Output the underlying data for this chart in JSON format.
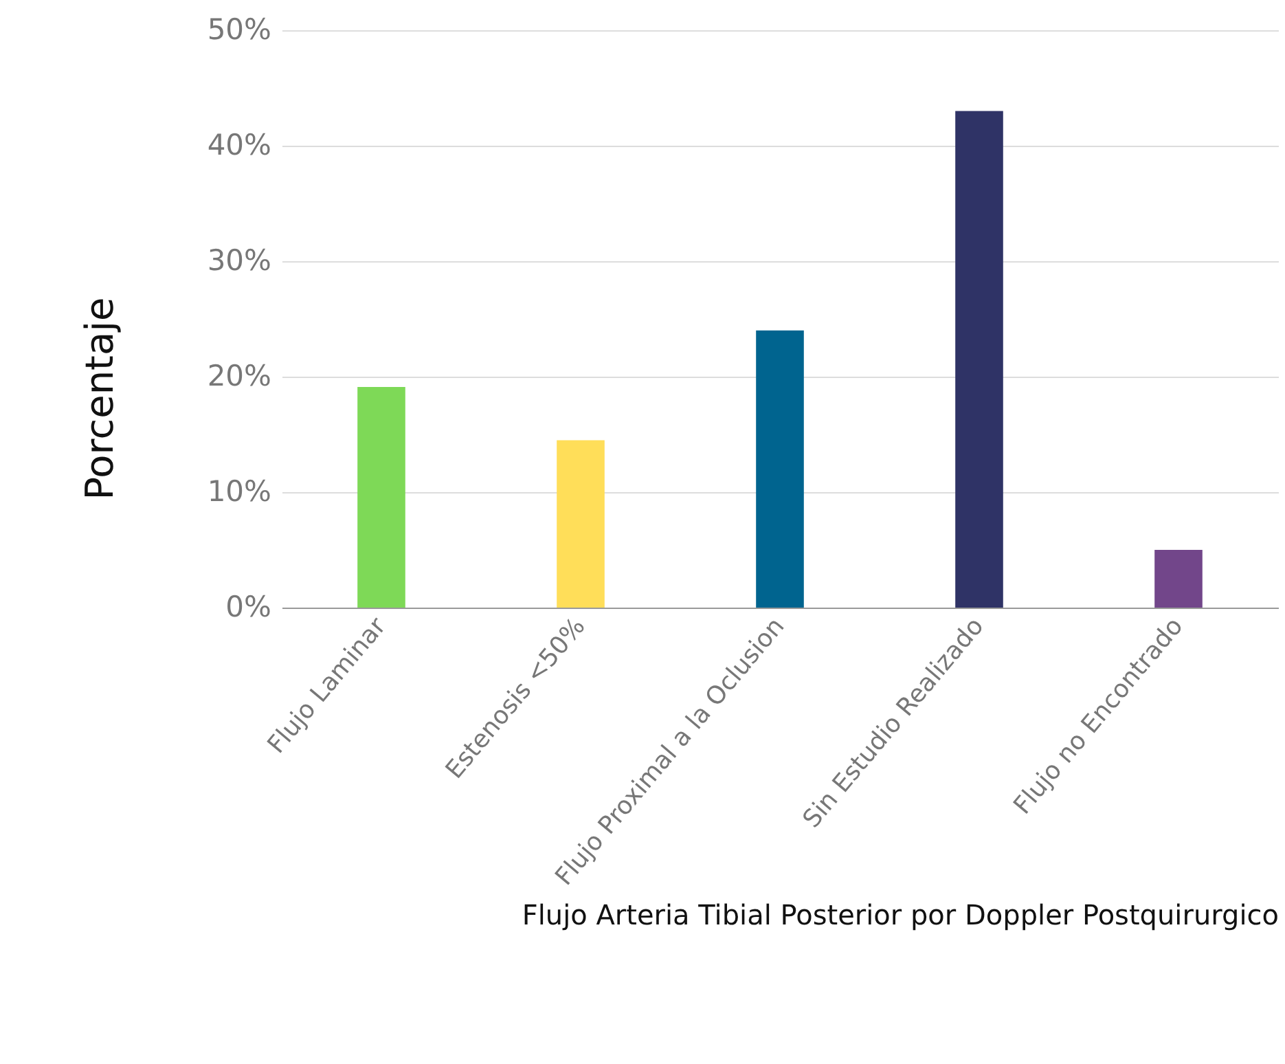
{
  "chart_data": {
    "type": "bar",
    "xlabel": "Flujo Arteria Tibial Posterior por Doppler Postquirurgico",
    "ylabel": "Porcentaje",
    "categories": [
      "Flujo Laminar",
      "Estenosis <50%",
      "Flujo Proximal a la Oclusion",
      "Sin Estudio Realizado",
      "Flujo no Encontrado"
    ],
    "values": [
      19.1,
      14.5,
      24,
      43,
      5
    ],
    "colors": [
      "#7ed957",
      "#ffde59",
      "#00648f",
      "#2f3366",
      "#72468a"
    ],
    "ylim": [
      0,
      50
    ],
    "yticks": [
      {
        "value": 0,
        "label": "0%"
      },
      {
        "value": 10,
        "label": "10%"
      },
      {
        "value": 20,
        "label": "20%"
      },
      {
        "value": 30,
        "label": "30%"
      },
      {
        "value": 40,
        "label": "40%"
      },
      {
        "value": 50,
        "label": "50%"
      }
    ],
    "grid": "y",
    "legend": false
  }
}
